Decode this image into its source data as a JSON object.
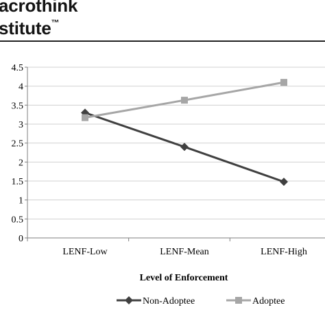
{
  "logo": {
    "line1": "acrothink",
    "line2": "stitute",
    "mark": "™"
  },
  "chart_data": {
    "type": "line",
    "categories": [
      "LENF-Low",
      "LENF-Mean",
      "LENF-High"
    ],
    "series": [
      {
        "name": "Non-Adoptee",
        "values": [
          3.3,
          2.4,
          1.48
        ],
        "color": "#404040",
        "marker": "diamond"
      },
      {
        "name": "Adoptee",
        "values": [
          3.17,
          3.63,
          4.1
        ],
        "color": "#a6a6a6",
        "marker": "square"
      }
    ],
    "title": "",
    "xlabel": "Level of Enforcement",
    "ylabel": "",
    "ylim": [
      0,
      4.5
    ],
    "yticks": [
      "0",
      "0.5",
      "1",
      "1.5",
      "2",
      "2.5",
      "3",
      "3.5",
      "4",
      "4.5"
    ],
    "grid": true,
    "legend": "bottom"
  }
}
